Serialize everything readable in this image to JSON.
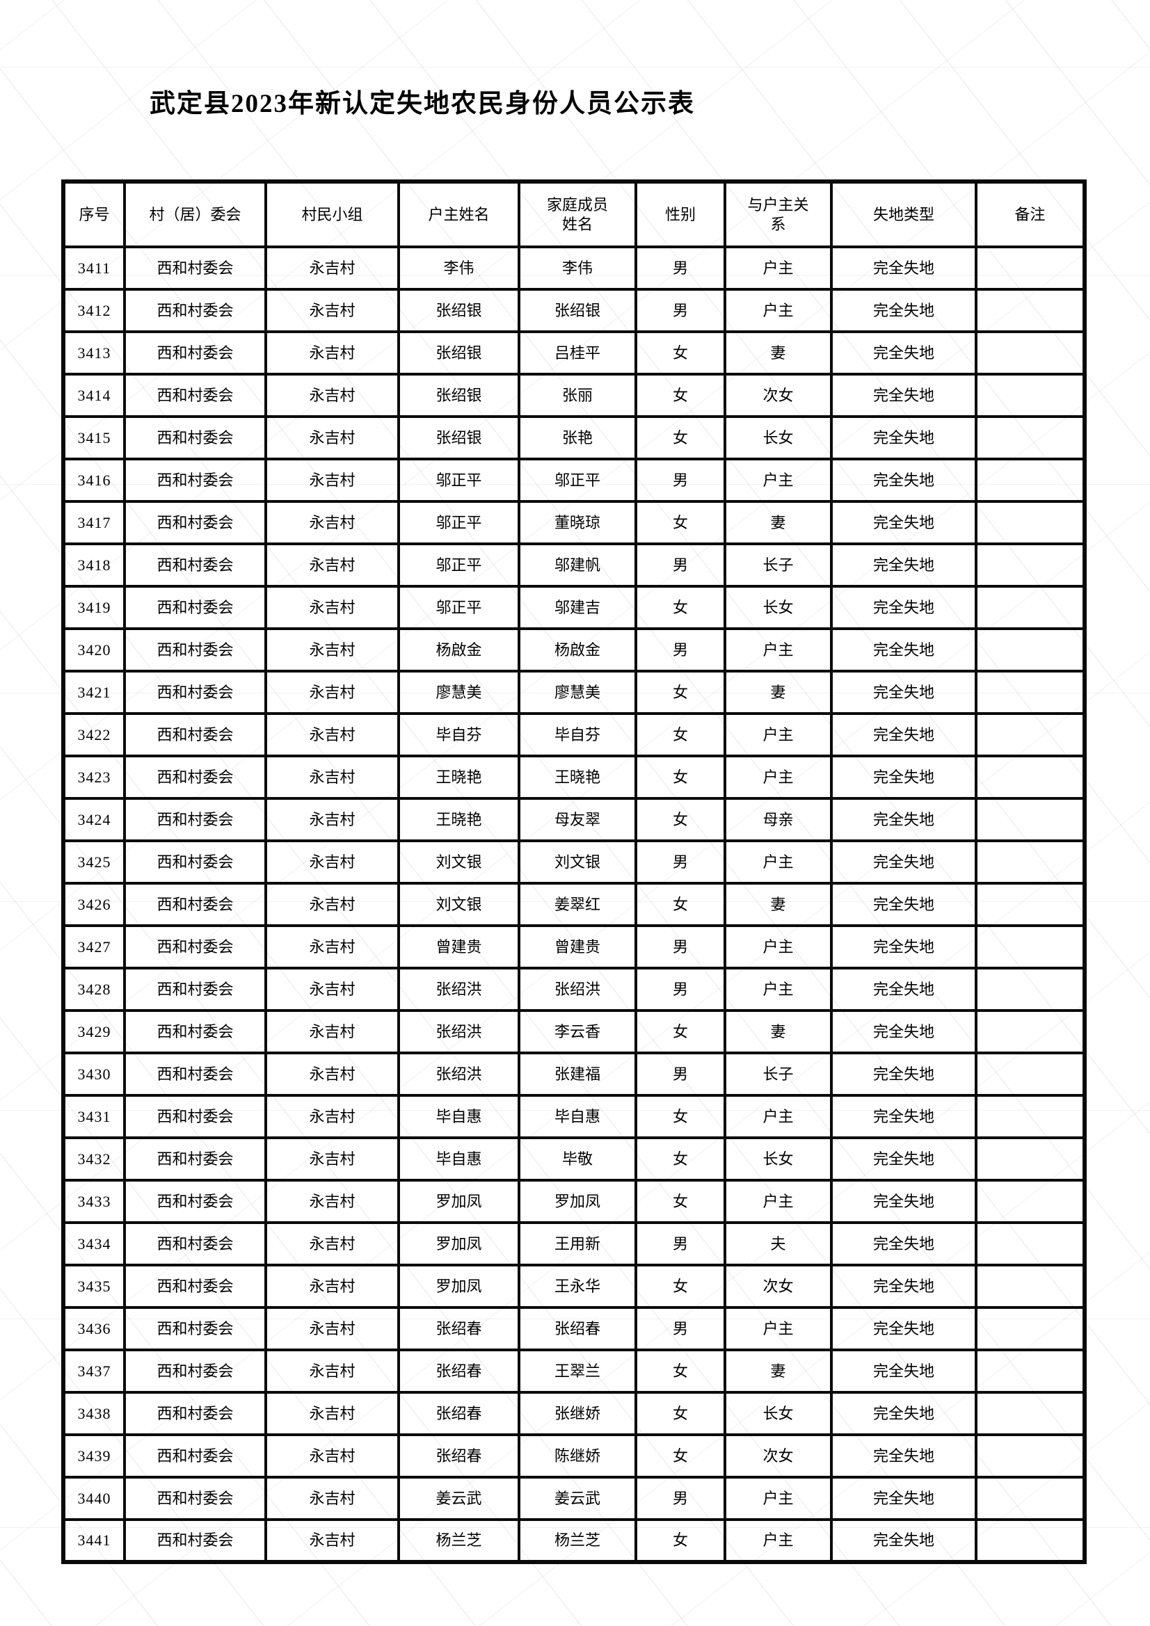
{
  "title": "武定县2023年新认定失地农民身份人员公示表",
  "table": {
    "headers": [
      "序号",
      "村（居）委会",
      "村民小组",
      "户主姓名",
      "家庭成员姓名",
      "性别",
      "与户主关系",
      "失地类型",
      "备注"
    ],
    "rows": [
      [
        "3411",
        "西和村委会",
        "永吉村",
        "李伟",
        "李伟",
        "男",
        "户主",
        "完全失地",
        ""
      ],
      [
        "3412",
        "西和村委会",
        "永吉村",
        "张绍银",
        "张绍银",
        "男",
        "户主",
        "完全失地",
        ""
      ],
      [
        "3413",
        "西和村委会",
        "永吉村",
        "张绍银",
        "吕桂平",
        "女",
        "妻",
        "完全失地",
        ""
      ],
      [
        "3414",
        "西和村委会",
        "永吉村",
        "张绍银",
        "张丽",
        "女",
        "次女",
        "完全失地",
        ""
      ],
      [
        "3415",
        "西和村委会",
        "永吉村",
        "张绍银",
        "张艳",
        "女",
        "长女",
        "完全失地",
        ""
      ],
      [
        "3416",
        "西和村委会",
        "永吉村",
        "邬正平",
        "邬正平",
        "男",
        "户主",
        "完全失地",
        ""
      ],
      [
        "3417",
        "西和村委会",
        "永吉村",
        "邬正平",
        "董晓琼",
        "女",
        "妻",
        "完全失地",
        ""
      ],
      [
        "3418",
        "西和村委会",
        "永吉村",
        "邬正平",
        "邬建帆",
        "男",
        "长子",
        "完全失地",
        ""
      ],
      [
        "3419",
        "西和村委会",
        "永吉村",
        "邬正平",
        "邬建吉",
        "女",
        "长女",
        "完全失地",
        ""
      ],
      [
        "3420",
        "西和村委会",
        "永吉村",
        "杨啟金",
        "杨啟金",
        "男",
        "户主",
        "完全失地",
        ""
      ],
      [
        "3421",
        "西和村委会",
        "永吉村",
        "廖慧美",
        "廖慧美",
        "女",
        "妻",
        "完全失地",
        ""
      ],
      [
        "3422",
        "西和村委会",
        "永吉村",
        "毕自芬",
        "毕自芬",
        "女",
        "户主",
        "完全失地",
        ""
      ],
      [
        "3423",
        "西和村委会",
        "永吉村",
        "王晓艳",
        "王晓艳",
        "女",
        "户主",
        "完全失地",
        ""
      ],
      [
        "3424",
        "西和村委会",
        "永吉村",
        "王晓艳",
        "母友翠",
        "女",
        "母亲",
        "完全失地",
        ""
      ],
      [
        "3425",
        "西和村委会",
        "永吉村",
        "刘文银",
        "刘文银",
        "男",
        "户主",
        "完全失地",
        ""
      ],
      [
        "3426",
        "西和村委会",
        "永吉村",
        "刘文银",
        "姜翠红",
        "女",
        "妻",
        "完全失地",
        ""
      ],
      [
        "3427",
        "西和村委会",
        "永吉村",
        "曾建贵",
        "曾建贵",
        "男",
        "户主",
        "完全失地",
        ""
      ],
      [
        "3428",
        "西和村委会",
        "永吉村",
        "张绍洪",
        "张绍洪",
        "男",
        "户主",
        "完全失地",
        ""
      ],
      [
        "3429",
        "西和村委会",
        "永吉村",
        "张绍洪",
        "李云香",
        "女",
        "妻",
        "完全失地",
        ""
      ],
      [
        "3430",
        "西和村委会",
        "永吉村",
        "张绍洪",
        "张建福",
        "男",
        "长子",
        "完全失地",
        ""
      ],
      [
        "3431",
        "西和村委会",
        "永吉村",
        "毕自惠",
        "毕自惠",
        "女",
        "户主",
        "完全失地",
        ""
      ],
      [
        "3432",
        "西和村委会",
        "永吉村",
        "毕自惠",
        "毕敬",
        "女",
        "长女",
        "完全失地",
        ""
      ],
      [
        "3433",
        "西和村委会",
        "永吉村",
        "罗加凤",
        "罗加凤",
        "女",
        "户主",
        "完全失地",
        ""
      ],
      [
        "3434",
        "西和村委会",
        "永吉村",
        "罗加凤",
        "王用新",
        "男",
        "夫",
        "完全失地",
        ""
      ],
      [
        "3435",
        "西和村委会",
        "永吉村",
        "罗加凤",
        "王永华",
        "女",
        "次女",
        "完全失地",
        ""
      ],
      [
        "3436",
        "西和村委会",
        "永吉村",
        "张绍春",
        "张绍春",
        "男",
        "户主",
        "完全失地",
        ""
      ],
      [
        "3437",
        "西和村委会",
        "永吉村",
        "张绍春",
        "王翠兰",
        "女",
        "妻",
        "完全失地",
        ""
      ],
      [
        "3438",
        "西和村委会",
        "永吉村",
        "张绍春",
        "张继娇",
        "女",
        "长女",
        "完全失地",
        ""
      ],
      [
        "3439",
        "西和村委会",
        "永吉村",
        "张绍春",
        "陈继娇",
        "女",
        "次女",
        "完全失地",
        ""
      ],
      [
        "3440",
        "西和村委会",
        "永吉村",
        "姜云武",
        "姜云武",
        "男",
        "户主",
        "完全失地",
        ""
      ],
      [
        "3441",
        "西和村委会",
        "永吉村",
        "杨兰芝",
        "杨兰芝",
        "女",
        "户主",
        "完全失地",
        ""
      ]
    ]
  }
}
